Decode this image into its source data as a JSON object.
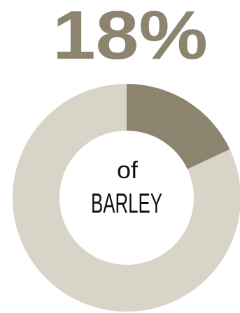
{
  "chart_data": {
    "type": "donut",
    "categories": [
      "BARLEY",
      null
    ],
    "values": [
      18,
      82
    ],
    "value_labels": [
      "18%",
      null
    ],
    "colors": [
      "#8d8470",
      "#d8d4c8"
    ],
    "center_label": [
      "of",
      "BARLEY"
    ]
  }
}
